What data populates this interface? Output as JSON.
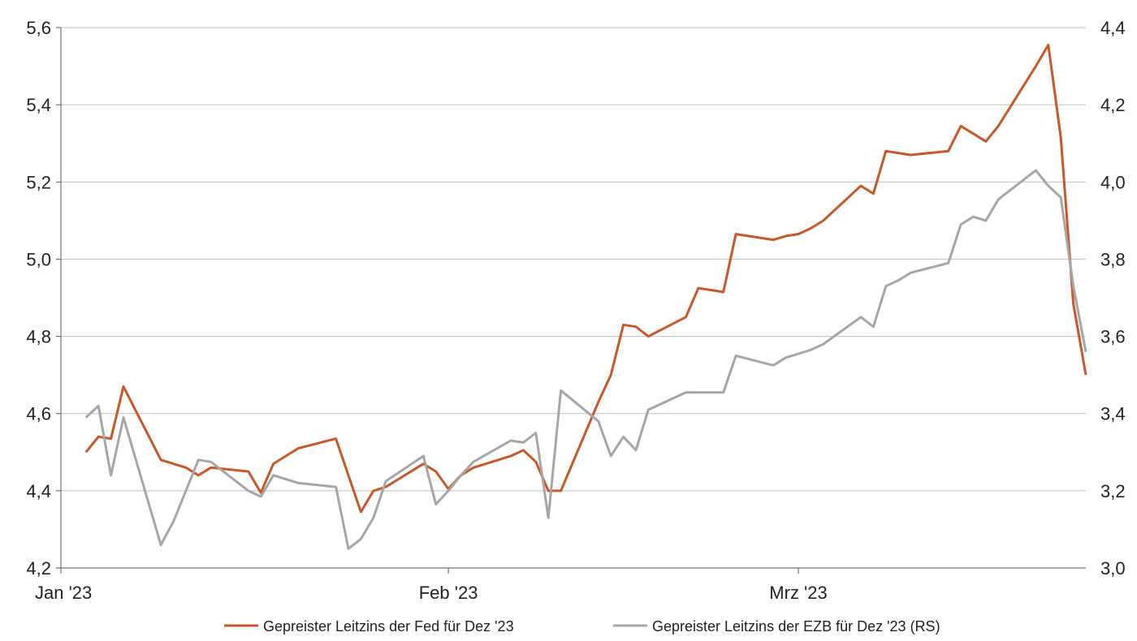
{
  "chart_data": {
    "type": "line",
    "title": "",
    "xlabel": "",
    "ylabel": "",
    "x_ticks": [
      "Jan '23",
      "Feb '23",
      "Mrz '23"
    ],
    "x_tick_dates": [
      "2023-01-01",
      "2023-02-01",
      "2023-03-01"
    ],
    "x_range": [
      "2023-01-01",
      "2023-03-24"
    ],
    "y_left": {
      "range": [
        4.2,
        5.6
      ],
      "ticks": [
        "4,2",
        "4,4",
        "4,6",
        "4,8",
        "5,0",
        "5,2",
        "5,4",
        "5,6"
      ]
    },
    "y_right": {
      "range": [
        3.0,
        4.4
      ],
      "ticks": [
        "3,0",
        "3,2",
        "3,4",
        "3,6",
        "3,8",
        "4,0",
        "4,2",
        "4,4"
      ]
    },
    "grid": true,
    "legend_position": "bottom",
    "series": [
      {
        "name": "Gepreister Leitzins der Fed für Dez '23",
        "axis": "left",
        "color": "#c8572a",
        "points": [
          [
            "2023-01-03",
            4.5
          ],
          [
            "2023-01-04",
            4.54
          ],
          [
            "2023-01-05",
            4.535
          ],
          [
            "2023-01-06",
            4.67
          ],
          [
            "2023-01-09",
            4.48
          ],
          [
            "2023-01-10",
            4.47
          ],
          [
            "2023-01-11",
            4.46
          ],
          [
            "2023-01-12",
            4.44
          ],
          [
            "2023-01-13",
            4.46
          ],
          [
            "2023-01-16",
            4.45
          ],
          [
            "2023-01-17",
            4.395
          ],
          [
            "2023-01-18",
            4.47
          ],
          [
            "2023-01-19",
            4.49
          ],
          [
            "2023-01-20",
            4.51
          ],
          [
            "2023-01-23",
            4.535
          ],
          [
            "2023-01-24",
            4.44
          ],
          [
            "2023-01-25",
            4.345
          ],
          [
            "2023-01-26",
            4.4
          ],
          [
            "2023-01-27",
            4.41
          ],
          [
            "2023-01-30",
            4.47
          ],
          [
            "2023-01-31",
            4.45
          ],
          [
            "2023-02-01",
            4.405
          ],
          [
            "2023-02-02",
            4.44
          ],
          [
            "2023-02-03",
            4.46
          ],
          [
            "2023-02-06",
            4.49
          ],
          [
            "2023-02-07",
            4.505
          ],
          [
            "2023-02-08",
            4.475
          ],
          [
            "2023-02-09",
            4.4
          ],
          [
            "2023-02-10",
            4.4
          ],
          [
            "2023-02-13",
            4.63
          ],
          [
            "2023-02-14",
            4.7
          ],
          [
            "2023-02-15",
            4.83
          ],
          [
            "2023-02-16",
            4.825
          ],
          [
            "2023-02-17",
            4.8
          ],
          [
            "2023-02-20",
            4.85
          ],
          [
            "2023-02-21",
            4.925
          ],
          [
            "2023-02-22",
            4.92
          ],
          [
            "2023-02-23",
            4.915
          ],
          [
            "2023-02-24",
            5.065
          ],
          [
            "2023-02-27",
            5.05
          ],
          [
            "2023-02-28",
            5.06
          ],
          [
            "2023-03-01",
            5.065
          ],
          [
            "2023-03-02",
            5.08
          ],
          [
            "2023-03-03",
            5.1
          ],
          [
            "2023-03-06",
            5.19
          ],
          [
            "2023-03-07",
            5.17
          ],
          [
            "2023-03-08",
            5.28
          ],
          [
            "2023-03-09",
            5.275
          ],
          [
            "2023-03-10",
            5.27
          ],
          [
            "2023-03-13",
            5.28
          ],
          [
            "2023-03-14",
            5.345
          ],
          [
            "2023-03-15",
            5.325
          ],
          [
            "2023-03-16",
            5.305
          ],
          [
            "2023-03-17",
            5.345
          ],
          [
            "2023-03-20",
            5.5
          ],
          [
            "2023-03-21",
            5.555
          ],
          [
            "2023-03-22",
            5.315
          ],
          [
            "2023-03-23",
            4.885
          ],
          [
            "2023-03-24",
            4.7
          ]
        ]
      },
      {
        "name": "Gepreister Leitzins der EZB für Dez '23 (RS)",
        "axis": "right",
        "color": "#a6a6a6",
        "points": [
          [
            "2023-01-03",
            3.39
          ],
          [
            "2023-01-04",
            3.42
          ],
          [
            "2023-01-05",
            3.24
          ],
          [
            "2023-01-06",
            3.39
          ],
          [
            "2023-01-09",
            3.06
          ],
          [
            "2023-01-10",
            3.12
          ],
          [
            "2023-01-11",
            3.2
          ],
          [
            "2023-01-12",
            3.28
          ],
          [
            "2023-01-13",
            3.275
          ],
          [
            "2023-01-16",
            3.2
          ],
          [
            "2023-01-17",
            3.185
          ],
          [
            "2023-01-18",
            3.24
          ],
          [
            "2023-01-19",
            3.23
          ],
          [
            "2023-01-20",
            3.22
          ],
          [
            "2023-01-23",
            3.21
          ],
          [
            "2023-01-24",
            3.05
          ],
          [
            "2023-01-25",
            3.075
          ],
          [
            "2023-01-26",
            3.13
          ],
          [
            "2023-01-27",
            3.225
          ],
          [
            "2023-01-30",
            3.29
          ],
          [
            "2023-01-31",
            3.165
          ],
          [
            "2023-02-01",
            3.2
          ],
          [
            "2023-02-02",
            3.24
          ],
          [
            "2023-02-03",
            3.275
          ],
          [
            "2023-02-06",
            3.33
          ],
          [
            "2023-02-07",
            3.325
          ],
          [
            "2023-02-08",
            3.35
          ],
          [
            "2023-02-09",
            3.13
          ],
          [
            "2023-02-10",
            3.46
          ],
          [
            "2023-02-13",
            3.38
          ],
          [
            "2023-02-14",
            3.29
          ],
          [
            "2023-02-15",
            3.34
          ],
          [
            "2023-02-16",
            3.305
          ],
          [
            "2023-02-17",
            3.41
          ],
          [
            "2023-02-20",
            3.455
          ],
          [
            "2023-02-21",
            3.455
          ],
          [
            "2023-02-22",
            3.455
          ],
          [
            "2023-02-23",
            3.455
          ],
          [
            "2023-02-24",
            3.55
          ],
          [
            "2023-02-27",
            3.525
          ],
          [
            "2023-02-28",
            3.545
          ],
          [
            "2023-03-01",
            3.555
          ],
          [
            "2023-03-02",
            3.565
          ],
          [
            "2023-03-03",
            3.58
          ],
          [
            "2023-03-06",
            3.65
          ],
          [
            "2023-03-07",
            3.625
          ],
          [
            "2023-03-08",
            3.73
          ],
          [
            "2023-03-09",
            3.745
          ],
          [
            "2023-03-10",
            3.765
          ],
          [
            "2023-03-13",
            3.79
          ],
          [
            "2023-03-14",
            3.89
          ],
          [
            "2023-03-15",
            3.91
          ],
          [
            "2023-03-16",
            3.9
          ],
          [
            "2023-03-17",
            3.955
          ],
          [
            "2023-03-20",
            4.03
          ],
          [
            "2023-03-21",
            3.99
          ],
          [
            "2023-03-22",
            3.96
          ],
          [
            "2023-03-23",
            3.73
          ],
          [
            "2023-03-24",
            3.56
          ]
        ]
      }
    ]
  }
}
